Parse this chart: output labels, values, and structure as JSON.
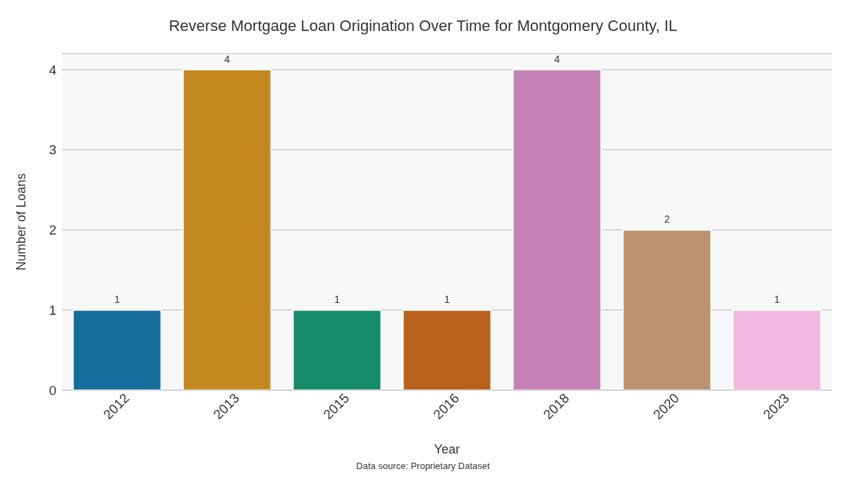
{
  "chart_data": {
    "type": "bar",
    "title": "Reverse Mortgage Loan Origination Over Time for Montgomery County, IL",
    "xlabel": "Year",
    "ylabel": "Number of Loans",
    "categories": [
      "2012",
      "2013",
      "2015",
      "2016",
      "2018",
      "2020",
      "2023"
    ],
    "values": [
      1,
      4,
      1,
      1,
      4,
      2,
      1
    ],
    "colors": [
      "#176d9c",
      "#c38820",
      "#158b6a",
      "#b8621e",
      "#c482b6",
      "#bc9270",
      "#f0b8df"
    ],
    "ylim": [
      0,
      4.2
    ],
    "yticks": [
      0,
      1,
      2,
      3,
      4
    ],
    "grid": "y",
    "data_labels": true,
    "annotations": [
      "Data source: Proprietary Dataset"
    ]
  }
}
